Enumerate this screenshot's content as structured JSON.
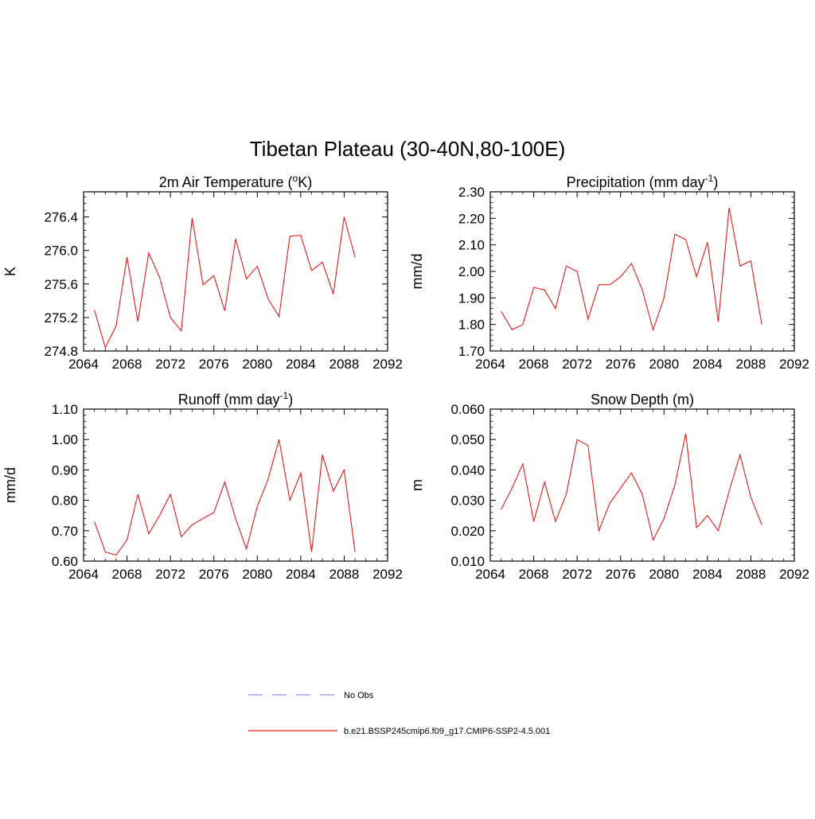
{
  "figure": {
    "title": "Tibetan Plateau (30-40N,80-100E)"
  },
  "colors": {
    "model_line": "#e41a1c",
    "obs_line": "#8f8fdf"
  },
  "legend": [
    {
      "label": "No Obs",
      "style": "dashed",
      "color": "#8f8fdf"
    },
    {
      "label": "b.e21.BSSP245cmip6.f09_g17.CMIP6-SSP2-4.5.001",
      "style": "solid",
      "color": "#e41a1c"
    }
  ],
  "chart_data": [
    {
      "type": "line",
      "title": {
        "main": "2m Air Temperature (",
        "sup": "o",
        "rest": "K)"
      },
      "ylabel": "K",
      "xlim": [
        2064,
        2092
      ],
      "ylim": [
        274.8,
        276.7
      ],
      "xticks": [
        2064,
        2068,
        2072,
        2076,
        2080,
        2084,
        2088,
        2092
      ],
      "yticks": [
        "274.8",
        "275.2",
        "275.6",
        "276.0",
        "276.4"
      ],
      "series": [
        {
          "x": [
            2065,
            2066,
            2067,
            2068,
            2069,
            2070,
            2071,
            2072,
            2073,
            2074,
            2075,
            2076,
            2077,
            2078,
            2079,
            2080,
            2081,
            2082,
            2083,
            2084,
            2085,
            2086,
            2087,
            2088,
            2089
          ],
          "y": [
            275.29,
            274.84,
            275.1,
            275.92,
            275.15,
            275.97,
            275.68,
            275.2,
            275.04,
            276.39,
            275.59,
            275.7,
            275.28,
            276.14,
            275.66,
            275.81,
            275.42,
            275.21,
            276.17,
            276.18,
            275.76,
            275.86,
            275.48,
            276.4,
            275.92
          ]
        }
      ]
    },
    {
      "type": "line",
      "title": {
        "main": "Precipitation (mm day",
        "sup": "-1",
        "rest": ")"
      },
      "ylabel": "mm/d",
      "xlim": [
        2064,
        2092
      ],
      "ylim": [
        1.7,
        2.3
      ],
      "xticks": [
        2064,
        2068,
        2072,
        2076,
        2080,
        2084,
        2088,
        2092
      ],
      "yticks": [
        "1.70",
        "1.80",
        "1.90",
        "2.00",
        "2.10",
        "2.20",
        "2.30"
      ],
      "series": [
        {
          "x": [
            2065,
            2066,
            2067,
            2068,
            2069,
            2070,
            2071,
            2072,
            2073,
            2074,
            2075,
            2076,
            2077,
            2078,
            2079,
            2080,
            2081,
            2082,
            2083,
            2084,
            2085,
            2086,
            2087,
            2088,
            2089
          ],
          "y": [
            1.85,
            1.78,
            1.8,
            1.94,
            1.93,
            1.86,
            2.02,
            2.0,
            1.82,
            1.95,
            1.95,
            1.98,
            2.03,
            1.93,
            1.78,
            1.9,
            2.14,
            2.12,
            1.98,
            2.11,
            1.81,
            2.24,
            2.02,
            2.04,
            1.8
          ]
        }
      ]
    },
    {
      "type": "line",
      "title": {
        "main": "Runoff (mm day",
        "sup": "-1",
        "rest": ")"
      },
      "ylabel": "mm/d",
      "xlim": [
        2064,
        2092
      ],
      "ylim": [
        0.6,
        1.1
      ],
      "xticks": [
        2064,
        2068,
        2072,
        2076,
        2080,
        2084,
        2088,
        2092
      ],
      "yticks": [
        "0.60",
        "0.70",
        "0.80",
        "0.90",
        "1.00",
        "1.10"
      ],
      "series": [
        {
          "x": [
            2065,
            2066,
            2067,
            2068,
            2069,
            2070,
            2071,
            2072,
            2073,
            2074,
            2075,
            2076,
            2077,
            2078,
            2079,
            2080,
            2081,
            2082,
            2083,
            2084,
            2085,
            2086,
            2087,
            2088,
            2089
          ],
          "y": [
            0.73,
            0.63,
            0.62,
            0.67,
            0.82,
            0.69,
            0.75,
            0.82,
            0.68,
            0.72,
            0.74,
            0.76,
            0.86,
            0.74,
            0.64,
            0.78,
            0.87,
            1.0,
            0.8,
            0.89,
            0.63,
            0.95,
            0.83,
            0.9,
            0.63
          ]
        }
      ]
    },
    {
      "type": "line",
      "title": {
        "main": "Snow Depth (m)",
        "sup": "",
        "rest": ""
      },
      "ylabel": "m",
      "xlim": [
        2064,
        2092
      ],
      "ylim": [
        0.01,
        0.06
      ],
      "xticks": [
        2064,
        2068,
        2072,
        2076,
        2080,
        2084,
        2088,
        2092
      ],
      "yticks": [
        "0.010",
        "0.020",
        "0.030",
        "0.040",
        "0.050",
        "0.060"
      ],
      "series": [
        {
          "x": [
            2065,
            2066,
            2067,
            2068,
            2069,
            2070,
            2071,
            2072,
            2073,
            2074,
            2075,
            2076,
            2077,
            2078,
            2079,
            2080,
            2081,
            2082,
            2083,
            2084,
            2085,
            2086,
            2087,
            2088,
            2089
          ],
          "y": [
            0.027,
            0.034,
            0.042,
            0.023,
            0.036,
            0.023,
            0.032,
            0.05,
            0.048,
            0.02,
            0.029,
            0.034,
            0.039,
            0.032,
            0.017,
            0.024,
            0.035,
            0.052,
            0.021,
            0.025,
            0.02,
            0.033,
            0.045,
            0.031,
            0.022
          ]
        }
      ]
    }
  ]
}
